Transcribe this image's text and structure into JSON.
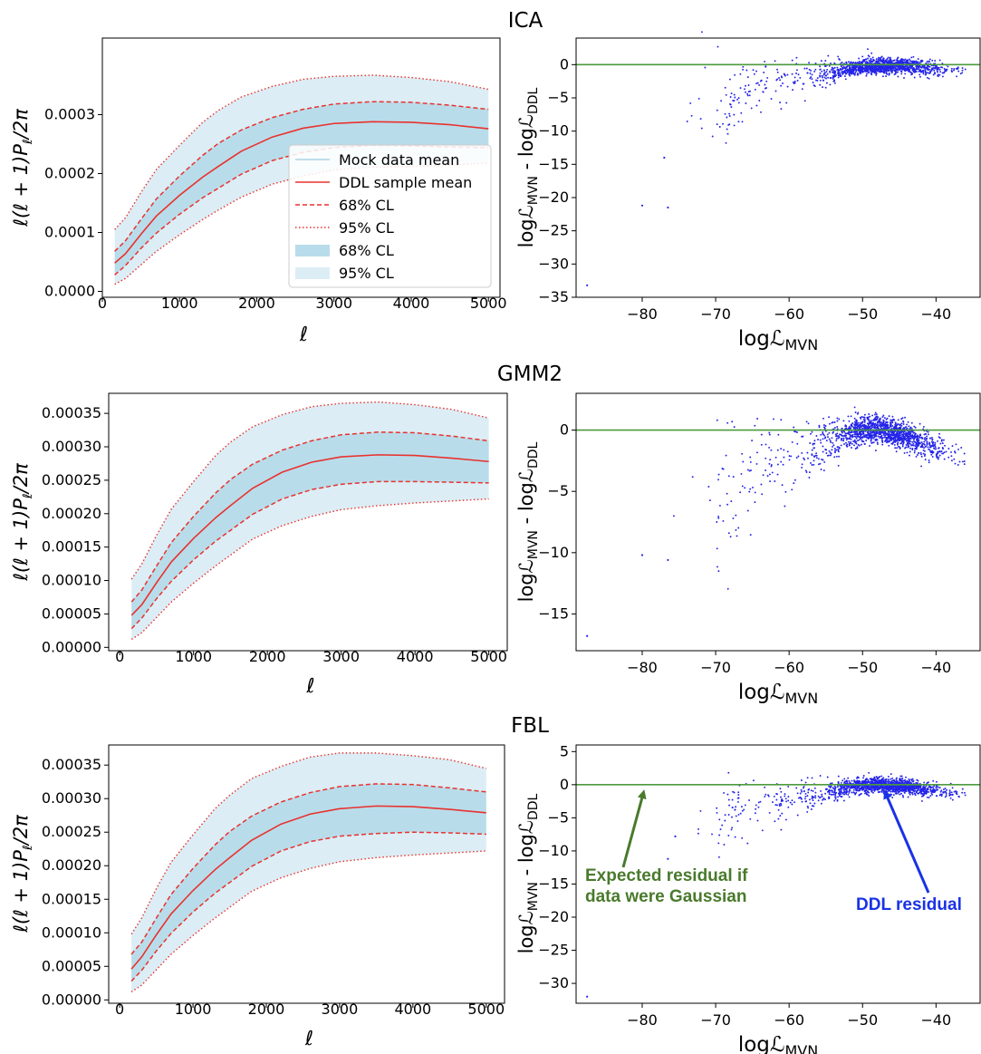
{
  "rows": [
    {
      "title": "ICA"
    },
    {
      "title": "GMM2"
    },
    {
      "title": "FBL"
    }
  ],
  "labels": {
    "spectrum_x": "ℓ",
    "spectrum_y_parts": [
      "ℓ(ℓ + 1)",
      "P",
      "ℓ",
      "/2π"
    ],
    "residual_x_parts": [
      "log",
      "ℒ",
      "MVN"
    ],
    "residual_y_parts": [
      "log",
      "ℒ",
      "MVN",
      " - log",
      "ℒ",
      "DDL"
    ]
  },
  "legend": [
    {
      "label": "Mock data mean",
      "style": "line",
      "color": "#a9d3e6"
    },
    {
      "label": "DDL sample mean",
      "style": "solid",
      "color": "#e8322e"
    },
    {
      "label": "68% CL",
      "style": "dashed",
      "color": "#e8322e"
    },
    {
      "label": "95% CL",
      "style": "dotted",
      "color": "#e8322e"
    },
    {
      "label": "68% CL",
      "style": "patch",
      "color": "#b9dcea"
    },
    {
      "label": "95% CL",
      "style": "patch",
      "color": "#dcedf5"
    }
  ],
  "annotations": {
    "gaussian": [
      "Expected residual if",
      "data were Gaussian"
    ],
    "ddl": "DDL residual"
  },
  "colors": {
    "band68": "#b9dcea",
    "band95": "#dcedf5",
    "red": "#e8322e",
    "green": "#4c9a3c",
    "blue": "#2424e8",
    "gaussian_annotation": "#4a7a2c",
    "ddl_annotation": "#1a32e6"
  },
  "chart_data": [
    {
      "type": "area",
      "panel": "ICA power spectrum",
      "xlim": [
        0,
        5150
      ],
      "ylim": [
        -1e-05,
        0.00043
      ],
      "xticks": [
        0,
        1000,
        2000,
        3000,
        4000,
        5000
      ],
      "yticks": [
        0,
        0.0001,
        0.0002,
        0.0003
      ],
      "ytick_labels": [
        "0.0000",
        "0.0001",
        "0.0002",
        "0.0003"
      ],
      "legend_position": "center-right",
      "x": [
        160,
        300,
        500,
        700,
        1000,
        1300,
        1500,
        1800,
        2200,
        2600,
        3000,
        3500,
        4000,
        4500,
        5000
      ],
      "series": [
        {
          "name": "DDL sample mean",
          "values": [
            4.8e-05,
            6.4e-05,
            9.7e-05,
            0.000128,
            0.000163,
            0.000194,
            0.000212,
            0.000238,
            0.000262,
            0.000277,
            0.000285,
            0.000288,
            0.000287,
            0.000283,
            0.000276
          ]
        },
        {
          "name": "68% CL upper",
          "values": [
            6.8e-05,
            8.6e-05,
            0.000122,
            0.000157,
            0.000196,
            0.000231,
            0.000251,
            0.000274,
            0.000295,
            0.000309,
            0.000318,
            0.000322,
            0.000321,
            0.000316,
            0.000309
          ]
        },
        {
          "name": "68% CL lower",
          "values": [
            2.8e-05,
            4.4e-05,
            7.3e-05,
            9.9e-05,
            0.000131,
            0.000159,
            0.000175,
            0.000199,
            0.000222,
            0.000236,
            0.000244,
            0.000248,
            0.000247,
            0.000245,
            0.000244
          ]
        },
        {
          "name": "95% CL upper",
          "values": [
            0.000105,
            0.000125,
            0.000168,
            0.000207,
            0.000248,
            0.000287,
            0.000307,
            0.00033,
            0.000348,
            0.00036,
            0.000365,
            0.000367,
            0.000363,
            0.000356,
            0.000343
          ]
        },
        {
          "name": "95% CL lower",
          "values": [
            1.2e-05,
            2.2e-05,
            4.5e-05,
            6.8e-05,
            9.6e-05,
            0.000122,
            0.000138,
            0.00016,
            0.000182,
            0.000196,
            0.000206,
            0.000211,
            0.000212,
            0.000214,
            0.000218
          ]
        }
      ]
    },
    {
      "type": "scatter",
      "panel": "ICA residual",
      "xlim": [
        -89,
        -34
      ],
      "ylim": [
        -35,
        4
      ],
      "xticks": [
        -80,
        -70,
        -60,
        -50,
        -40
      ],
      "yticks": [
        0,
        -5,
        -10,
        -15,
        -20,
        -25,
        -30,
        -35
      ],
      "reference_line_y": 0,
      "points": {
        "count": 1500,
        "x_mean": -47,
        "x_sd": 5,
        "outliers": [
          [
            -87.5,
            -33.2
          ],
          [
            -80,
            -21.2
          ],
          [
            -76.5,
            -21.5
          ],
          [
            -77,
            -14
          ]
        ]
      },
      "trend": {
        "x": [
          -70,
          -60,
          -50,
          -45,
          -40,
          -37
        ],
        "y": [
          -6,
          -2.2,
          -0.3,
          -0.1,
          -0.6,
          -0.9
        ]
      }
    },
    {
      "type": "area",
      "panel": "GMM2 power spectrum",
      "xlim": [
        -150,
        5250
      ],
      "ylim": [
        -5e-06,
        0.00038
      ],
      "xticks": [
        0,
        1000,
        2000,
        3000,
        4000,
        5000
      ],
      "yticks": [
        0,
        5e-05,
        0.0001,
        0.00015,
        0.0002,
        0.00025,
        0.0003,
        0.00035
      ],
      "ytick_labels": [
        "0.00000",
        "0.00005",
        "0.00010",
        "0.00015",
        "0.00020",
        "0.00025",
        "0.00030",
        "0.00035"
      ],
      "x": [
        160,
        300,
        500,
        700,
        1000,
        1300,
        1500,
        1800,
        2200,
        2600,
        3000,
        3500,
        4000,
        4500,
        5000
      ],
      "series": [
        {
          "name": "DDL sample mean",
          "values": [
            4.8e-05,
            6.4e-05,
            9.7e-05,
            0.000128,
            0.000163,
            0.000194,
            0.000212,
            0.000238,
            0.000262,
            0.000277,
            0.000285,
            0.000288,
            0.000287,
            0.000283,
            0.000278
          ]
        },
        {
          "name": "68% CL upper",
          "values": [
            6.8e-05,
            8.6e-05,
            0.000122,
            0.000157,
            0.000196,
            0.000231,
            0.000251,
            0.000274,
            0.000295,
            0.000309,
            0.000318,
            0.000322,
            0.000321,
            0.000316,
            0.000309
          ]
        },
        {
          "name": "68% CL lower",
          "values": [
            2.8e-05,
            4.4e-05,
            7.3e-05,
            9.9e-05,
            0.000131,
            0.000159,
            0.000175,
            0.000199,
            0.000222,
            0.000236,
            0.000244,
            0.000248,
            0.000248,
            0.000247,
            0.000246
          ]
        },
        {
          "name": "95% CL upper",
          "values": [
            0.000102,
            0.000125,
            0.000168,
            0.000207,
            0.000248,
            0.000287,
            0.000307,
            0.00033,
            0.000348,
            0.00036,
            0.000365,
            0.000367,
            0.000363,
            0.000356,
            0.000343
          ]
        },
        {
          "name": "95% CL lower",
          "values": [
            1.2e-05,
            2.2e-05,
            4.5e-05,
            6.8e-05,
            9.6e-05,
            0.000122,
            0.000138,
            0.000162,
            0.000182,
            0.000196,
            0.000206,
            0.000212,
            0.000216,
            0.000219,
            0.000222
          ]
        }
      ]
    },
    {
      "type": "scatter",
      "panel": "GMM2 residual",
      "xlim": [
        -89,
        -34
      ],
      "ylim": [
        -18,
        3
      ],
      "xticks": [
        -80,
        -70,
        -60,
        -50,
        -40
      ],
      "yticks": [
        0,
        -5,
        -10,
        -15
      ],
      "reference_line_y": 0,
      "points": {
        "count": 1500,
        "x_mean": -47,
        "x_sd": 5,
        "outliers": [
          [
            -87.5,
            -16.8
          ],
          [
            -80,
            -10.2
          ],
          [
            -76.5,
            -10.6
          ]
        ]
      },
      "trend": {
        "x": [
          -70,
          -60,
          -52,
          -48,
          -44,
          -40,
          -37
        ],
        "y": [
          -5.5,
          -2.3,
          -0.3,
          0.2,
          -0.5,
          -1.5,
          -2
        ]
      }
    },
    {
      "type": "area",
      "panel": "FBL power spectrum",
      "xlim": [
        -150,
        5250
      ],
      "ylim": [
        -5e-06,
        0.00038
      ],
      "xticks": [
        0,
        1000,
        2000,
        3000,
        4000,
        5000
      ],
      "yticks": [
        0,
        5e-05,
        0.0001,
        0.00015,
        0.0002,
        0.00025,
        0.0003,
        0.00035
      ],
      "ytick_labels": [
        "0.00000",
        "0.00005",
        "0.00010",
        "0.00015",
        "0.00020",
        "0.00025",
        "0.00030",
        "0.00035"
      ],
      "x": [
        160,
        300,
        500,
        700,
        1000,
        1300,
        1500,
        1800,
        2200,
        2600,
        3000,
        3500,
        4000,
        4500,
        5000
      ],
      "series": [
        {
          "name": "DDL sample mean",
          "values": [
            4.6e-05,
            6.4e-05,
            9.7e-05,
            0.000128,
            0.000163,
            0.000194,
            0.000212,
            0.000238,
            0.000262,
            0.000277,
            0.000285,
            0.000289,
            0.000288,
            0.000284,
            0.000279
          ]
        },
        {
          "name": "68% CL upper",
          "values": [
            6.8e-05,
            8.6e-05,
            0.000122,
            0.000157,
            0.000196,
            0.000231,
            0.000251,
            0.000274,
            0.000295,
            0.000309,
            0.000318,
            0.000322,
            0.000321,
            0.000316,
            0.00031
          ]
        },
        {
          "name": "68% CL lower",
          "values": [
            2.8e-05,
            4.4e-05,
            7.3e-05,
            9.9e-05,
            0.000131,
            0.000159,
            0.000175,
            0.000199,
            0.000222,
            0.000236,
            0.000244,
            0.000248,
            0.00025,
            0.000249,
            0.000247
          ]
        },
        {
          "name": "95% CL upper",
          "values": [
            9.8e-05,
            0.000122,
            0.000166,
            0.000205,
            0.000246,
            0.000285,
            0.000305,
            0.00033,
            0.000348,
            0.000362,
            0.000368,
            0.000368,
            0.000364,
            0.000358,
            0.000345
          ]
        },
        {
          "name": "95% CL lower",
          "values": [
            1.2e-05,
            2.2e-05,
            4.5e-05,
            6.8e-05,
            9.6e-05,
            0.000122,
            0.000138,
            0.000162,
            0.000182,
            0.000196,
            0.000206,
            0.000212,
            0.000216,
            0.000219,
            0.000222
          ]
        }
      ]
    },
    {
      "type": "scatter",
      "panel": "FBL residual",
      "xlim": [
        -89,
        -34
      ],
      "ylim": [
        -33,
        6
      ],
      "xticks": [
        -80,
        -70,
        -60,
        -50,
        -40
      ],
      "yticks": [
        5,
        0,
        -5,
        -10,
        -15,
        -20,
        -25,
        -30
      ],
      "reference_line_y": 0,
      "points": {
        "count": 1500,
        "x_mean": -47,
        "x_sd": 5,
        "outliers": [
          [
            -87.5,
            -32
          ],
          [
            -76.5,
            -11.2
          ],
          [
            -75.5,
            -7.8
          ]
        ]
      },
      "trend": {
        "x": [
          -70,
          -60,
          -52,
          -48,
          -44,
          -40,
          -37
        ],
        "y": [
          -5.5,
          -2.4,
          -0.4,
          0,
          -0.3,
          -0.9,
          -1.3
        ]
      }
    }
  ]
}
